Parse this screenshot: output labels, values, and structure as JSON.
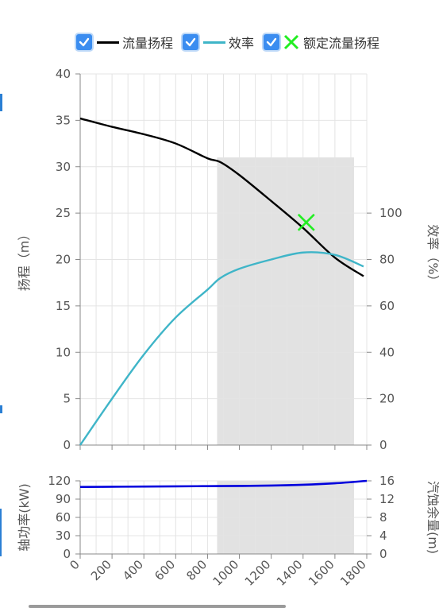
{
  "legend": [
    {
      "label": "流量扬程",
      "color": "#000000",
      "kind": "line",
      "checked": true
    },
    {
      "label": "效率",
      "color": "#3fb5c8",
      "kind": "line",
      "checked": true
    },
    {
      "label": "额定流量扬程",
      "color": "#22ee22",
      "kind": "cross",
      "checked": true
    }
  ],
  "chart_data": [
    {
      "type": "line",
      "x": [
        0,
        200,
        400,
        600,
        800,
        880,
        1000,
        1200,
        1400,
        1600,
        1780
      ],
      "xlim": [
        0,
        1800
      ],
      "series": [
        {
          "name": "流量扬程",
          "axis": "left",
          "color": "#000000",
          "values": [
            35.2,
            34.3,
            33.5,
            32.5,
            30.9,
            30.5,
            29.1,
            26.3,
            23.4,
            20.2,
            18.2
          ]
        },
        {
          "name": "效率",
          "axis": "right",
          "color": "#3fb5c8",
          "values": [
            0,
            20,
            39,
            55,
            67,
            72,
            76,
            80,
            83,
            82,
            77
          ]
        }
      ],
      "marker": {
        "name": "额定流量扬程",
        "x": 1420,
        "y": 24,
        "color": "#22ee22"
      },
      "ylabel_left": "扬程（m）",
      "ylim_left": [
        0,
        40
      ],
      "yticks_left": [
        0,
        5,
        10,
        15,
        20,
        25,
        30,
        35,
        40
      ],
      "ylabel_right": "效率（%）",
      "ylim_right": [
        0,
        160
      ],
      "yticks_right": [
        0,
        20,
        40,
        60,
        80,
        100
      ],
      "shaded_range": [
        860,
        1720
      ],
      "grid": true
    },
    {
      "type": "line",
      "x": [
        0,
        200,
        400,
        600,
        800,
        1000,
        1200,
        1400,
        1600,
        1800
      ],
      "xlim": [
        0,
        1800
      ],
      "xticks": [
        0,
        200,
        400,
        600,
        800,
        1000,
        1200,
        1400,
        1600,
        1800
      ],
      "series": [
        {
          "name": "轴功率",
          "axis": "left",
          "color": "#0000dd",
          "values": [
            110,
            110.3,
            110.6,
            111,
            111.3,
            111.6,
            112.2,
            113.5,
            116,
            120
          ]
        }
      ],
      "ylabel_left": "轴功率(kW)",
      "ylim_left": [
        0,
        120
      ],
      "yticks_left": [
        0,
        30,
        60,
        90,
        120
      ],
      "ylabel_right": "汽蚀余量(m)",
      "ylim_right": [
        0,
        16
      ],
      "yticks_right": [
        0,
        4,
        8,
        12,
        16
      ],
      "shaded_range": [
        860,
        1720
      ],
      "grid": true
    }
  ]
}
